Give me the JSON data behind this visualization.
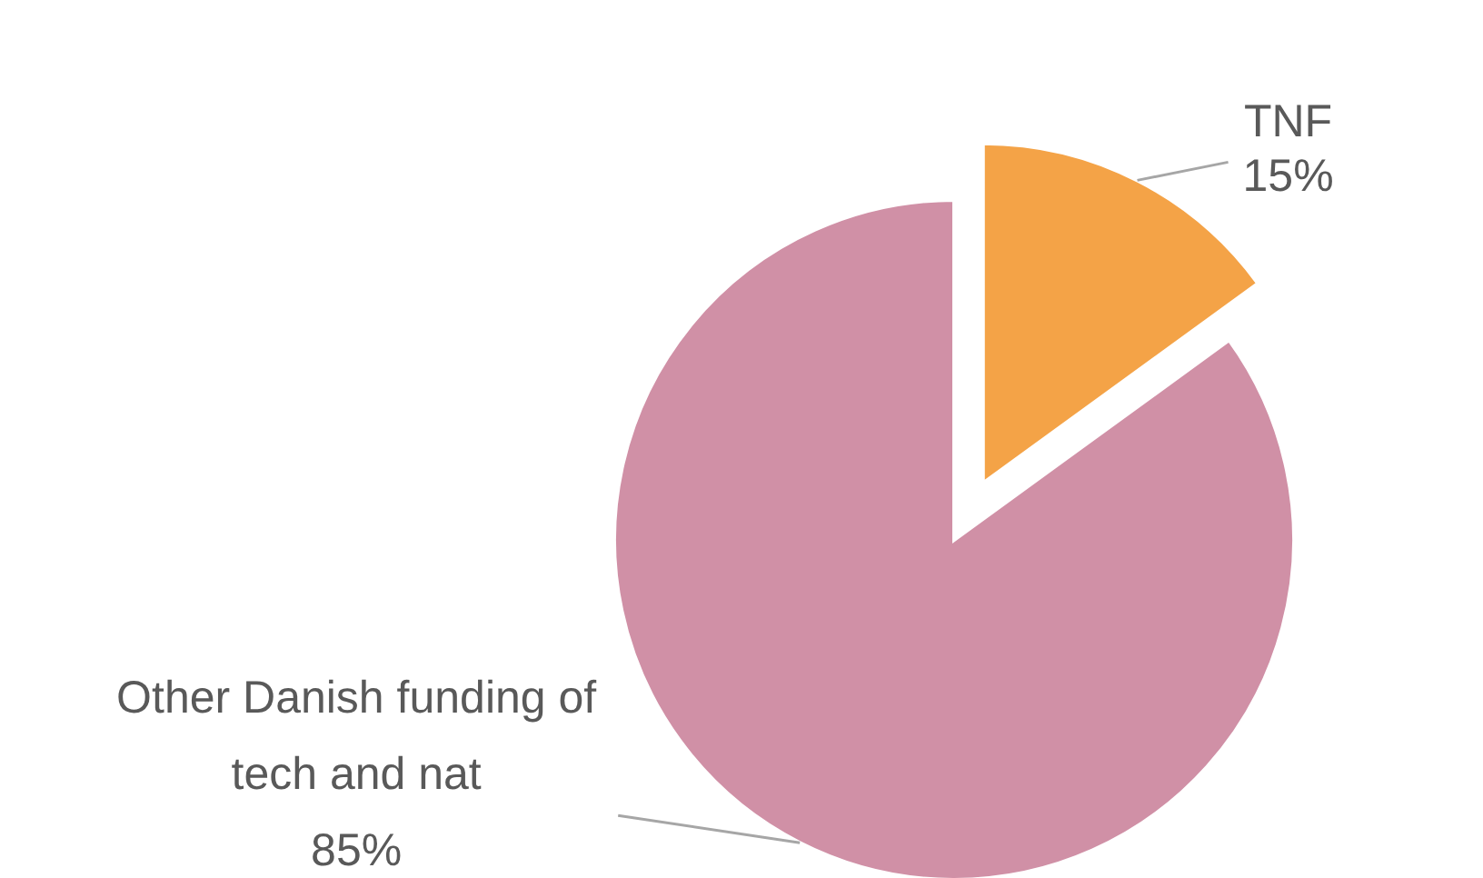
{
  "chart_data": {
    "type": "pie",
    "categories": [
      "TNF",
      "Other Danish funding of tech and nat"
    ],
    "values": [
      15,
      85
    ],
    "colors": [
      "#f4a347",
      "#d090a6"
    ],
    "value_labels": [
      "15%",
      "85%"
    ]
  }
}
